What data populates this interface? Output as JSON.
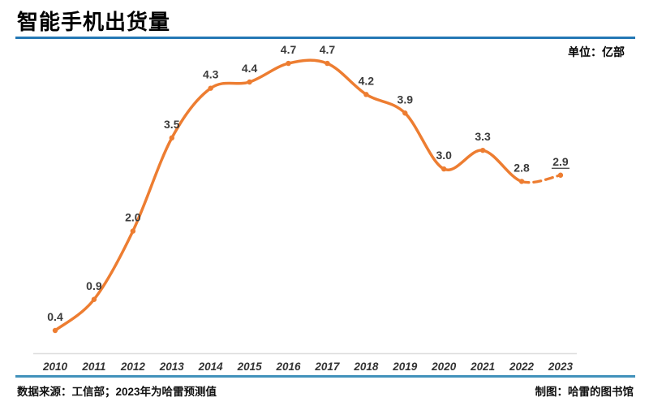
{
  "header": {
    "title": "智能手机出货量",
    "unit_label": "单位：亿部"
  },
  "footer": {
    "source": "数据来源：工信部；2023年为哈雷预测值",
    "credit": "制图：哈雷的图书馆"
  },
  "colors": {
    "line": "#ED7D31",
    "value_label": "#3B3B3B",
    "axis_label": "#333333",
    "axis_line": "#DEDEDE",
    "rule_top": "#2478B5",
    "rule_bottom": "#4191BB"
  },
  "chart_data": {
    "type": "line",
    "title": "智能手机出货量",
    "unit": "亿部",
    "categories": [
      "2010",
      "2011",
      "2012",
      "2013",
      "2014",
      "2015",
      "2016",
      "2017",
      "2018",
      "2019",
      "2020",
      "2021",
      "2022",
      "2023"
    ],
    "values": [
      0.4,
      0.9,
      2.0,
      3.5,
      4.3,
      4.4,
      4.7,
      4.7,
      4.2,
      3.9,
      3.0,
      3.3,
      2.8,
      2.9
    ],
    "value_labels": [
      "0.4",
      "0.9",
      "2.0",
      "3.5",
      "4.3",
      "4.4",
      "4.7",
      "4.7",
      "4.2",
      "3.9",
      "3.0",
      "3.3",
      "2.8",
      "2.9"
    ],
    "dashed_from_index": 12,
    "forecast_index": 13,
    "ylim": [
      0,
      5
    ],
    "grid": false,
    "legend": "none",
    "smooth": true,
    "marker": "dot"
  }
}
